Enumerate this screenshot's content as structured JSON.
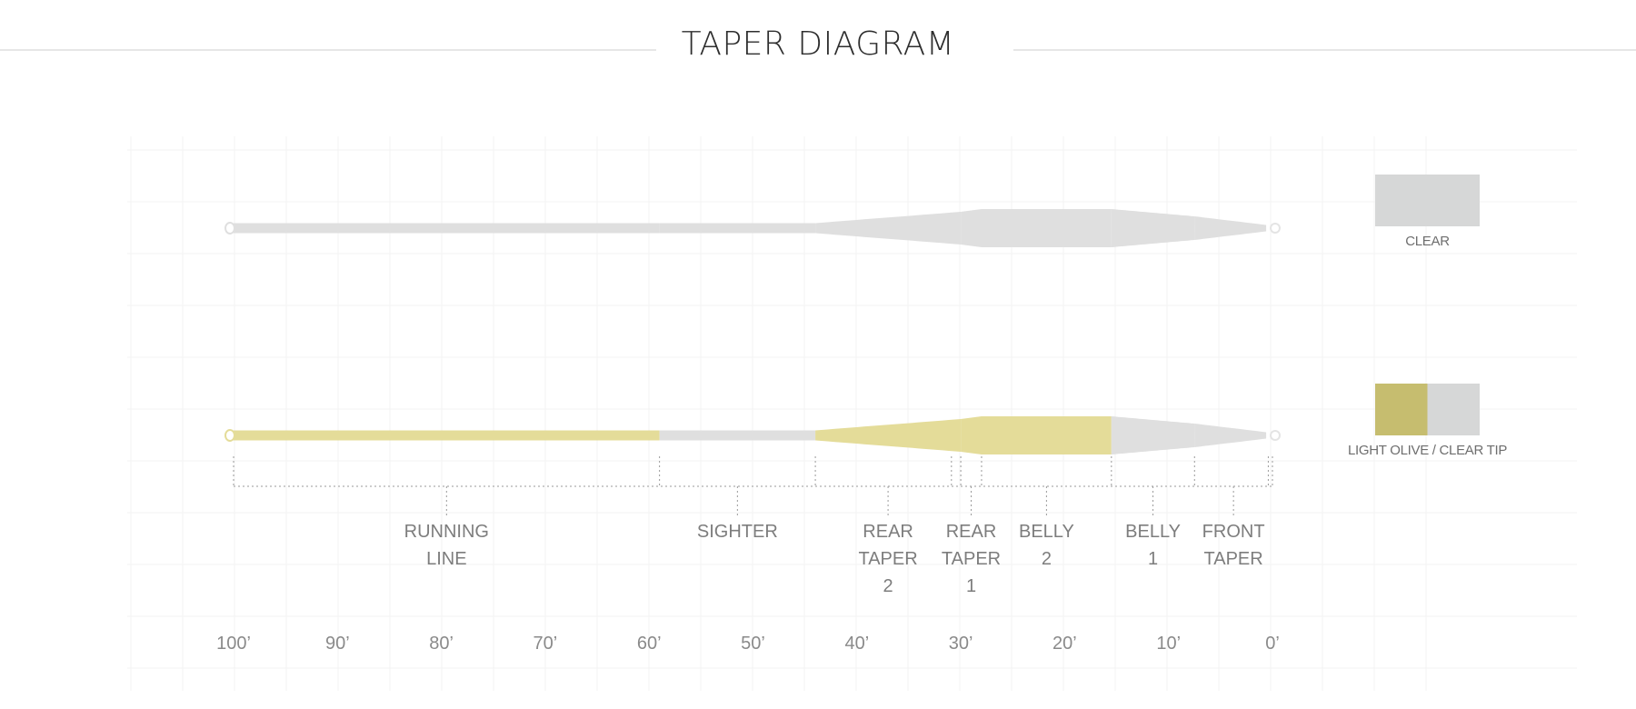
{
  "title": "TAPER DIAGRAM",
  "colors": {
    "clear": "#dfdfdf",
    "olive": "#e4dc99",
    "olive_swatch": "#c6bd6f",
    "clear_swatch": "#d6d7d7"
  },
  "lines": [
    {
      "name": "CLEAR",
      "segments": [
        "clear",
        "clear",
        "clear",
        "clear",
        "clear",
        "clear",
        "clear"
      ]
    },
    {
      "name": "LIGHT OLIVE / CLEAR TIP",
      "segments": [
        "olive",
        "clear",
        "olive",
        "olive",
        "olive",
        "clear",
        "clear"
      ]
    }
  ],
  "sections": [
    {
      "label": "RUNNING\nLINE",
      "start_ft": 100,
      "end_ft": 59
    },
    {
      "label": "SIGHTER",
      "start_ft": 59,
      "end_ft": 44
    },
    {
      "label": "REAR\nTAPER\n2",
      "start_ft": 44,
      "end_ft": 30
    },
    {
      "label": "REAR\nTAPER\n1",
      "start_ft": 30,
      "end_ft": 28
    },
    {
      "label": "BELLY\n2",
      "start_ft": 28,
      "end_ft": 15.5
    },
    {
      "label": "BELLY\n1",
      "start_ft": 15.5,
      "end_ft": 7.5
    },
    {
      "label": "FRONT\nTAPER",
      "start_ft": 7.5,
      "end_ft": 0
    }
  ],
  "axis_ticks": [
    "100’",
    "90’",
    "80’",
    "70’",
    "60’",
    "50’",
    "40’",
    "30’",
    "20’",
    "10’",
    "0’"
  ],
  "swatches": [
    {
      "label": "CLEAR",
      "colors": [
        "clear_swatch"
      ]
    },
    {
      "label": "LIGHT OLIVE / CLEAR TIP",
      "colors": [
        "olive_swatch",
        "clear_swatch"
      ]
    }
  ]
}
